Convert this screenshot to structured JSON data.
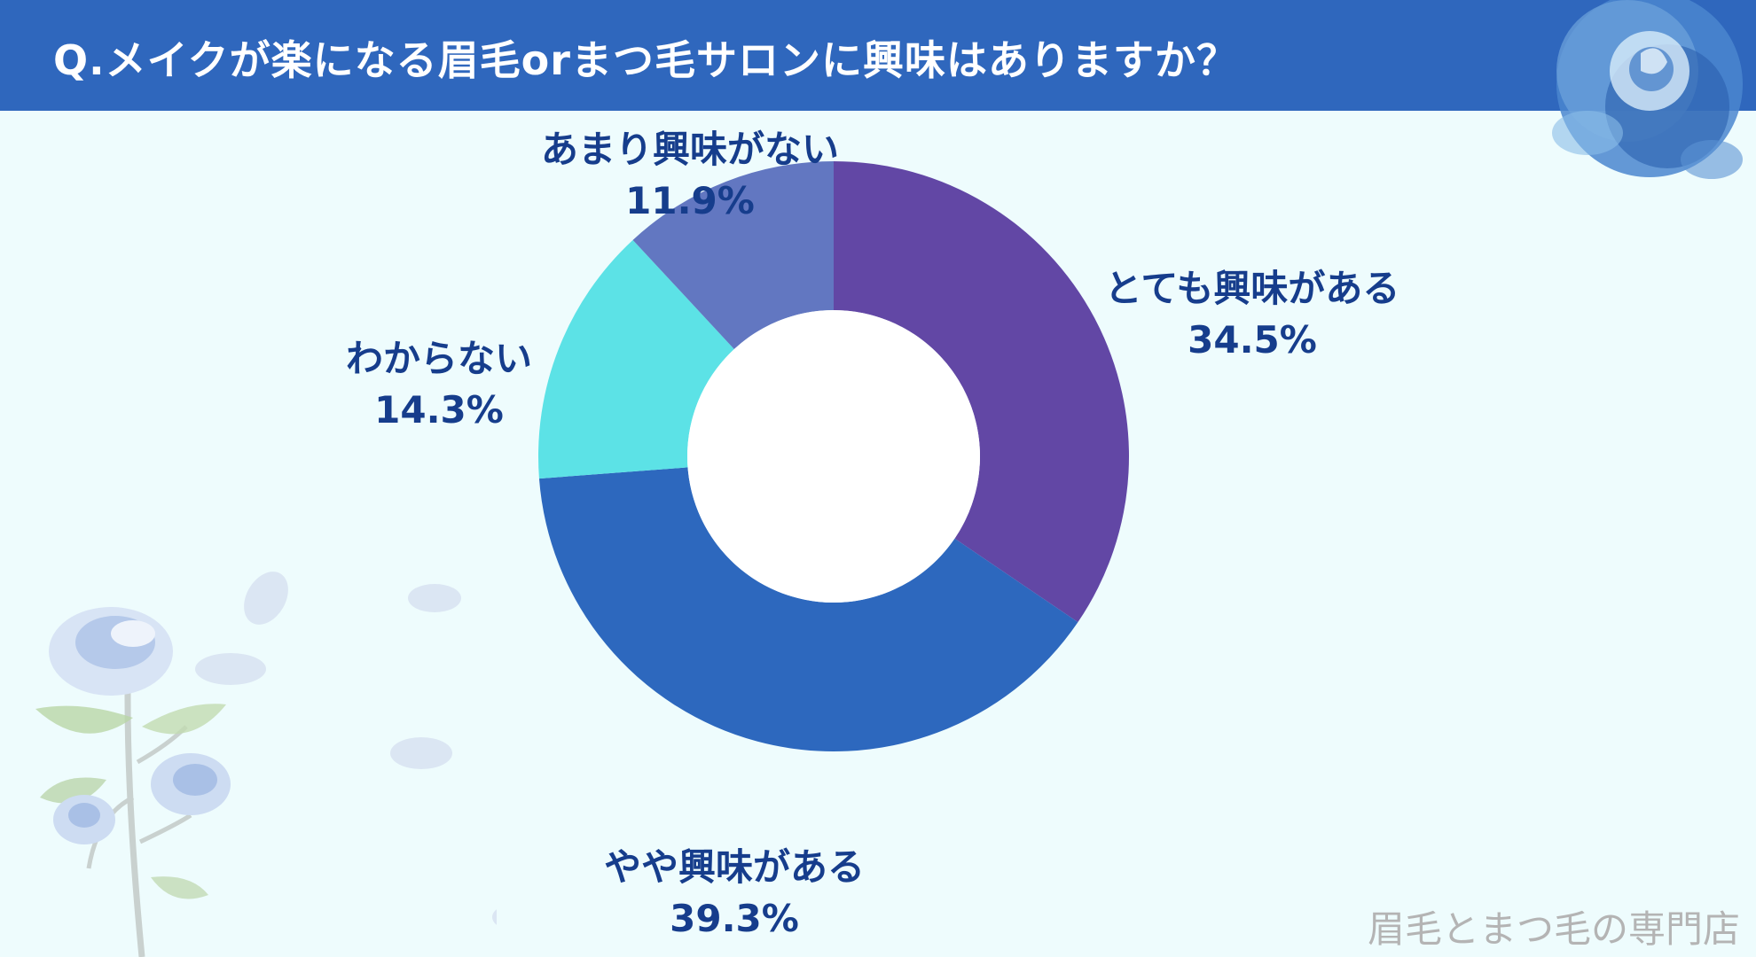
{
  "title": "Q.メイクが楽になる眉毛orまつ毛サロンに興味はありますか？",
  "watermark": "眉毛とまつ毛の専門店",
  "chart_data": {
    "type": "pie",
    "donut": true,
    "start_angle_deg": 0,
    "direction": "clockwise",
    "slices": [
      {
        "label": "とても興味がある",
        "value": 34.5,
        "display": "34.5%",
        "color": "#6247a5"
      },
      {
        "label": "やや興味がある",
        "value": 39.3,
        "display": "39.3%",
        "color": "#2d68be"
      },
      {
        "label": "わからない",
        "value": 14.3,
        "display": "14.3%",
        "color": "#5ce2e6"
      },
      {
        "label": "あまり興味がない",
        "value": 11.9,
        "display": "11.9%",
        "color": "#6277c1"
      }
    ],
    "legend": "none",
    "hole_color": "#ffffff"
  }
}
